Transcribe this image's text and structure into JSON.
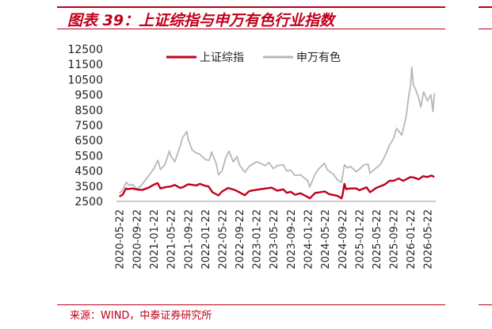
{
  "header": {
    "title": "图表 39：上证综指与申万有色行业指数"
  },
  "footer": {
    "source": "来源：WIND，中泰证券研究所"
  },
  "chart_data": {
    "type": "line",
    "title": "图表 39：上证综指与申万有色行业指数",
    "xlabel": "",
    "ylabel": "",
    "ylim": [
      2500,
      12500
    ],
    "yticks": [
      2500,
      3500,
      4500,
      5500,
      6500,
      7500,
      8500,
      9500,
      10500,
      11500,
      12500
    ],
    "xlim": [
      "2020-05-01",
      "2026-07-20"
    ],
    "xticks": [
      "2020-05-22",
      "2020-09-22",
      "2021-01-22",
      "2021-05-22",
      "2021-09-22",
      "2022-01-22",
      "2022-05-22",
      "2022-09-22",
      "2023-01-22",
      "2023-05-22",
      "2023-09-22",
      "2024-01-22",
      "2024-05-22",
      "2024-09-22",
      "2025-01-22",
      "2025-05-22",
      "2025-09-22",
      "2026-01-22",
      "2026-05-22"
    ],
    "grid": false,
    "legend_position": "top",
    "series": [
      {
        "name": "上证综指",
        "color": "#c0001a",
        "points": [
          [
            "2020-05-22",
            2810
          ],
          [
            "2020-06-15",
            2950
          ],
          [
            "2020-07-07",
            3350
          ],
          [
            "2020-07-20",
            3300
          ],
          [
            "2020-08-20",
            3350
          ],
          [
            "2020-09-22",
            3280
          ],
          [
            "2020-11-01",
            3250
          ],
          [
            "2020-12-15",
            3400
          ],
          [
            "2021-01-22",
            3600
          ],
          [
            "2021-02-18",
            3700
          ],
          [
            "2021-03-10",
            3350
          ],
          [
            "2021-04-15",
            3430
          ],
          [
            "2021-05-22",
            3480
          ],
          [
            "2021-06-20",
            3580
          ],
          [
            "2021-07-28",
            3380
          ],
          [
            "2021-08-20",
            3450
          ],
          [
            "2021-09-22",
            3620
          ],
          [
            "2021-10-20",
            3590
          ],
          [
            "2021-11-20",
            3540
          ],
          [
            "2021-12-15",
            3650
          ],
          [
            "2022-01-22",
            3520
          ],
          [
            "2022-02-15",
            3480
          ],
          [
            "2022-03-15",
            3100
          ],
          [
            "2022-04-26",
            2890
          ],
          [
            "2022-05-22",
            3150
          ],
          [
            "2022-07-05",
            3380
          ],
          [
            "2022-08-20",
            3250
          ],
          [
            "2022-09-22",
            3100
          ],
          [
            "2022-10-31",
            2900
          ],
          [
            "2022-12-01",
            3170
          ],
          [
            "2023-01-22",
            3260
          ],
          [
            "2023-03-01",
            3310
          ],
          [
            "2023-05-09",
            3400
          ],
          [
            "2023-06-20",
            3200
          ],
          [
            "2023-07-31",
            3290
          ],
          [
            "2023-08-25",
            3060
          ],
          [
            "2023-09-22",
            3130
          ],
          [
            "2023-10-23",
            2940
          ],
          [
            "2023-12-01",
            3030
          ],
          [
            "2024-01-22",
            2780
          ],
          [
            "2024-02-05",
            2700
          ],
          [
            "2024-03-15",
            3050
          ],
          [
            "2024-05-22",
            3150
          ],
          [
            "2024-06-20",
            2980
          ],
          [
            "2024-08-20",
            2860
          ],
          [
            "2024-09-18",
            2700
          ],
          [
            "2024-09-25",
            2900
          ],
          [
            "2024-10-08",
            3650
          ],
          [
            "2024-10-20",
            3300
          ],
          [
            "2024-11-20",
            3350
          ],
          [
            "2024-12-31",
            3350
          ],
          [
            "2025-01-22",
            3230
          ],
          [
            "2025-03-15",
            3420
          ],
          [
            "2025-04-08",
            3100
          ],
          [
            "2025-05-22",
            3380
          ],
          [
            "2025-07-20",
            3600
          ],
          [
            "2025-08-25",
            3850
          ],
          [
            "2025-09-22",
            3850
          ],
          [
            "2025-10-30",
            4000
          ],
          [
            "2025-12-01",
            3850
          ],
          [
            "2026-01-22",
            4100
          ],
          [
            "2026-02-20",
            4050
          ],
          [
            "2026-03-20",
            3950
          ],
          [
            "2026-04-20",
            4150
          ],
          [
            "2026-05-22",
            4100
          ],
          [
            "2026-06-20",
            4200
          ],
          [
            "2026-07-10",
            4100
          ]
        ]
      },
      {
        "name": "申万有色",
        "color": "#b7b7b7",
        "points": [
          [
            "2020-05-22",
            3020
          ],
          [
            "2020-06-15",
            3280
          ],
          [
            "2020-07-10",
            3750
          ],
          [
            "2020-07-30",
            3550
          ],
          [
            "2020-08-25",
            3600
          ],
          [
            "2020-09-22",
            3300
          ],
          [
            "2020-10-25",
            3550
          ],
          [
            "2020-12-01",
            4000
          ],
          [
            "2020-12-25",
            4300
          ],
          [
            "2021-01-22",
            4650
          ],
          [
            "2021-02-20",
            5200
          ],
          [
            "2021-03-10",
            4600
          ],
          [
            "2021-04-10",
            4900
          ],
          [
            "2021-05-12",
            5800
          ],
          [
            "2021-05-22",
            5500
          ],
          [
            "2021-06-20",
            5100
          ],
          [
            "2021-07-20",
            5900
          ],
          [
            "2021-08-15",
            6700
          ],
          [
            "2021-09-14",
            7100
          ],
          [
            "2021-09-22",
            6600
          ],
          [
            "2021-10-20",
            5900
          ],
          [
            "2021-11-15",
            5700
          ],
          [
            "2021-12-15",
            5600
          ],
          [
            "2022-01-22",
            5250
          ],
          [
            "2022-02-20",
            5200
          ],
          [
            "2022-03-08",
            5750
          ],
          [
            "2022-04-10",
            5000
          ],
          [
            "2022-04-27",
            4250
          ],
          [
            "2022-05-22",
            4500
          ],
          [
            "2022-06-15",
            5300
          ],
          [
            "2022-07-10",
            5800
          ],
          [
            "2022-08-10",
            5100
          ],
          [
            "2022-09-05",
            5450
          ],
          [
            "2022-09-22",
            4900
          ],
          [
            "2022-10-31",
            4400
          ],
          [
            "2022-12-01",
            4800
          ],
          [
            "2023-01-22",
            5100
          ],
          [
            "2023-02-20",
            5000
          ],
          [
            "2023-03-25",
            4850
          ],
          [
            "2023-04-20",
            5050
          ],
          [
            "2023-05-22",
            4650
          ],
          [
            "2023-06-20",
            4850
          ],
          [
            "2023-07-31",
            4900
          ],
          [
            "2023-08-25",
            4500
          ],
          [
            "2023-09-22",
            4550
          ],
          [
            "2023-10-23",
            4200
          ],
          [
            "2023-12-01",
            4250
          ],
          [
            "2024-01-22",
            3850
          ],
          [
            "2024-02-05",
            3450
          ],
          [
            "2024-03-15",
            4300
          ],
          [
            "2024-04-10",
            4650
          ],
          [
            "2024-05-20",
            5000
          ],
          [
            "2024-06-10",
            4550
          ],
          [
            "2024-07-20",
            4300
          ],
          [
            "2024-08-20",
            3900
          ],
          [
            "2024-09-18",
            3750
          ],
          [
            "2024-10-08",
            4900
          ],
          [
            "2024-10-30",
            4700
          ],
          [
            "2024-11-20",
            4800
          ],
          [
            "2024-12-31",
            4450
          ],
          [
            "2025-01-22",
            4600
          ],
          [
            "2025-02-25",
            4900
          ],
          [
            "2025-03-25",
            4950
          ],
          [
            "2025-04-08",
            4350
          ],
          [
            "2025-05-22",
            4700
          ],
          [
            "2025-06-20",
            4900
          ],
          [
            "2025-07-25",
            5500
          ],
          [
            "2025-08-25",
            6200
          ],
          [
            "2025-09-22",
            6600
          ],
          [
            "2025-10-15",
            7300
          ],
          [
            "2025-11-20",
            6850
          ],
          [
            "2025-12-20",
            8000
          ],
          [
            "2026-01-10",
            9500
          ],
          [
            "2026-01-22",
            10100
          ],
          [
            "2026-01-30",
            11300
          ],
          [
            "2026-02-10",
            10200
          ],
          [
            "2026-03-01",
            9800
          ],
          [
            "2026-03-20",
            9300
          ],
          [
            "2026-04-05",
            8700
          ],
          [
            "2026-04-25",
            9700
          ],
          [
            "2026-05-22",
            9100
          ],
          [
            "2026-06-15",
            9500
          ],
          [
            "2026-06-30",
            8400
          ],
          [
            "2026-07-10",
            9600
          ]
        ]
      }
    ]
  }
}
